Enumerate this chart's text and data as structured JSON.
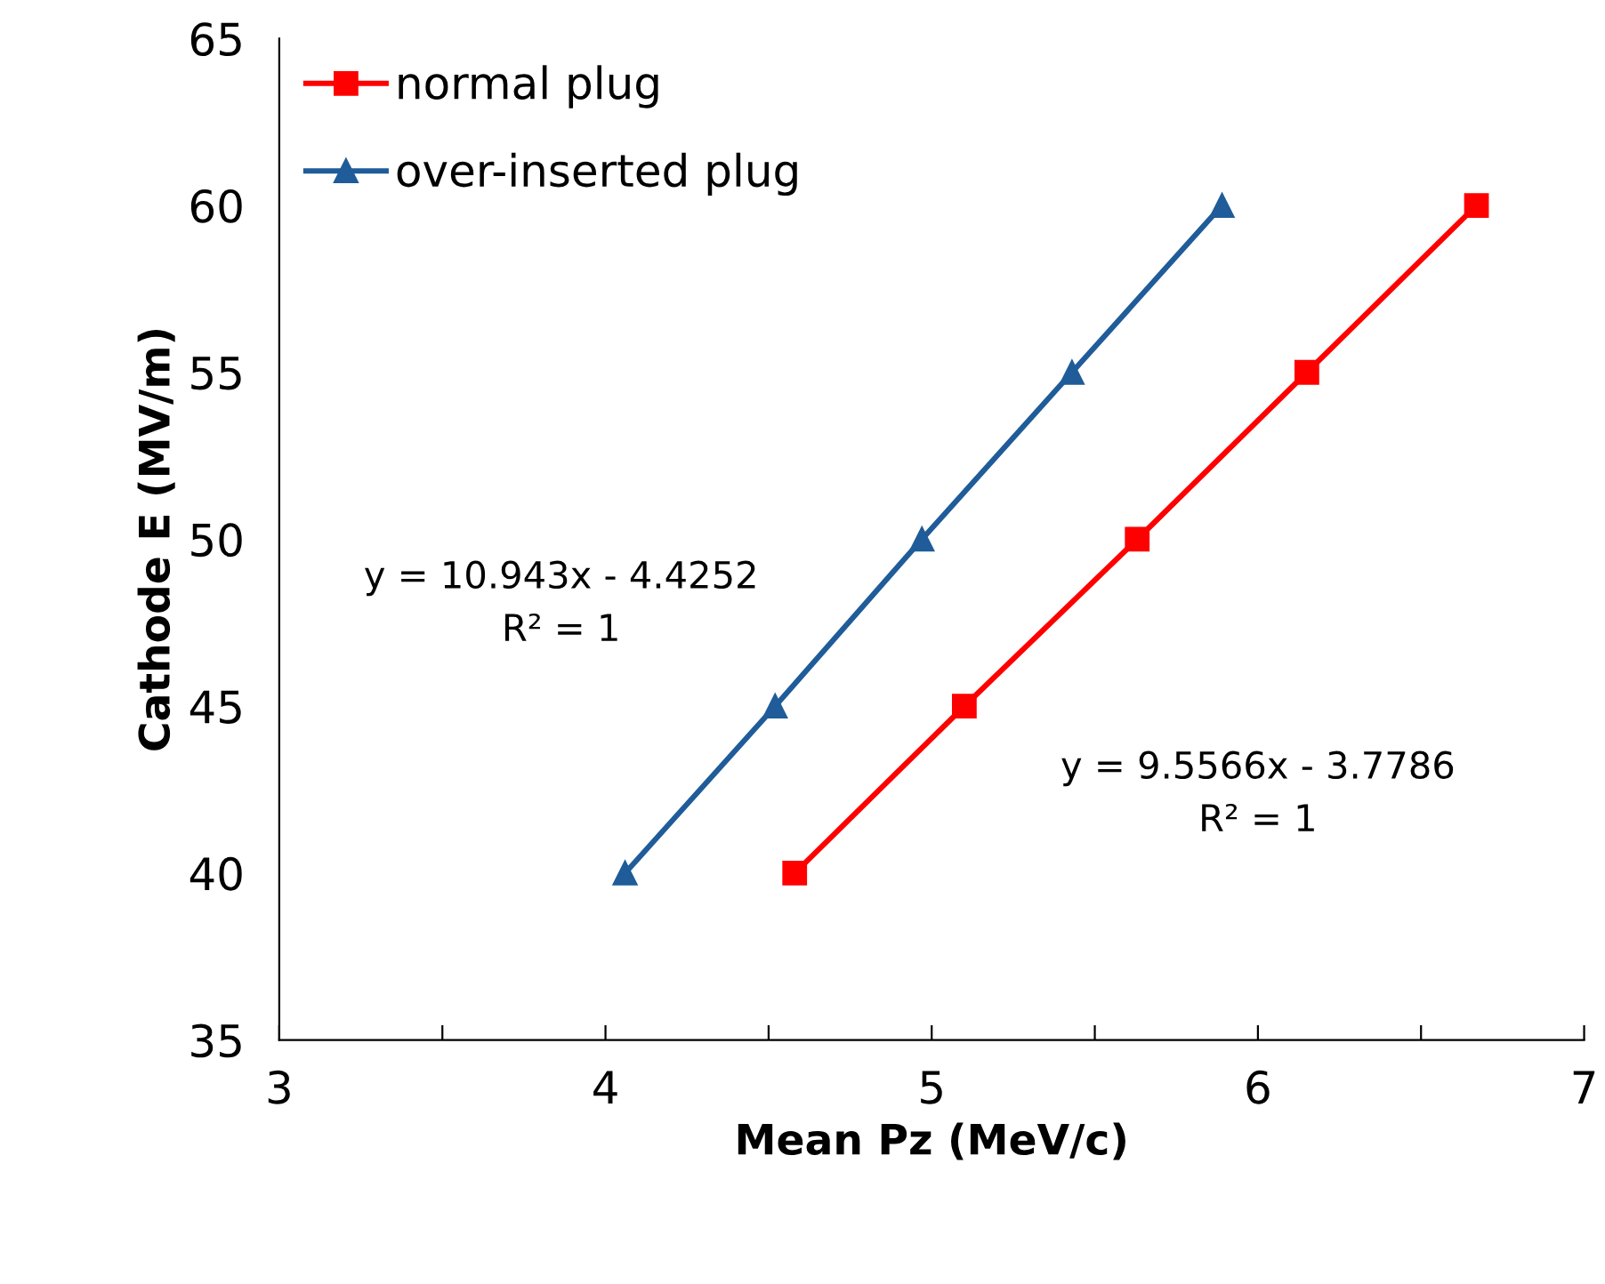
{
  "chart_data": {
    "type": "line",
    "xlabel": "Mean Pz (MeV/c)",
    "ylabel": "Cathode E (MV/m)",
    "series": [
      {
        "name": "normal plug",
        "color": "#ff0000",
        "marker": "square",
        "x": [
          4.58,
          5.1,
          5.63,
          6.15,
          6.67
        ],
        "values": [
          40,
          45,
          50,
          55,
          60
        ]
      },
      {
        "name": "over-inserted plug",
        "color": "#1f5c99",
        "marker": "triangle",
        "x": [
          4.06,
          4.52,
          4.97,
          5.43,
          5.89
        ],
        "values": [
          40,
          45,
          50,
          55,
          60
        ]
      }
    ],
    "xlim": [
      3,
      7
    ],
    "xticks": [
      3,
      {
        "value": 3.5,
        "label": null
      },
      4,
      {
        "value": 4.5,
        "label": null
      },
      5,
      {
        "value": 5.5,
        "label": null
      },
      6,
      {
        "value": 6.5,
        "label": null
      },
      7
    ],
    "ylim": [
      35,
      65
    ],
    "yticks": [
      35,
      40,
      45,
      50,
      55,
      60,
      65
    ],
    "annotations": [
      "y = 10.943x - 4.4252\nR² = 1",
      "y = 9.5566x - 3.7786\nR² = 1"
    ],
    "legend": "top left",
    "grid": false,
    "line_style": "solid"
  }
}
